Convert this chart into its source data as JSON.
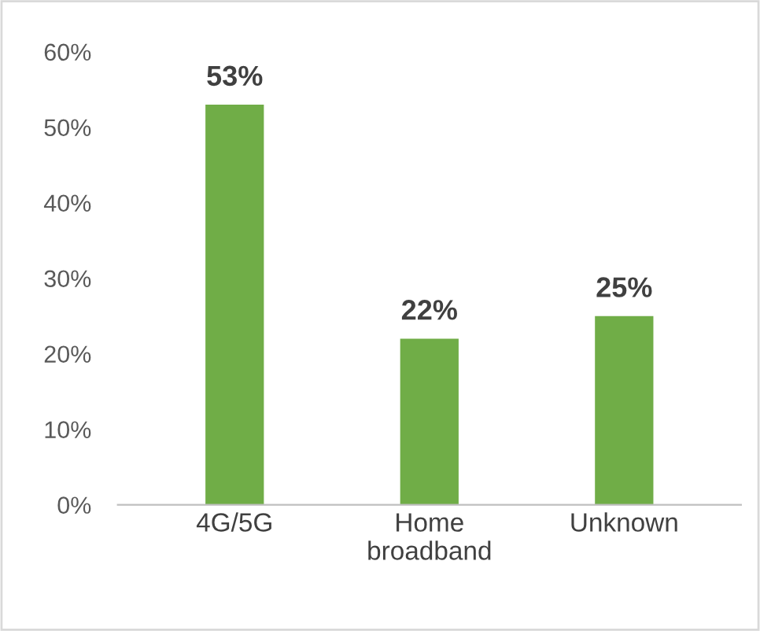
{
  "chart_data": {
    "type": "bar",
    "categories": [
      "4G/5G",
      "Home\nbroadband",
      "Unknown"
    ],
    "values": [
      53,
      22,
      25
    ],
    "color": "#70ad47",
    "value_labels": [
      "53%",
      "22%",
      "25%"
    ],
    "ylim": [
      0,
      60
    ],
    "yticks": [
      {
        "value": 0,
        "label": "0%"
      },
      {
        "value": 10,
        "label": "10%"
      },
      {
        "value": 20,
        "label": "20%"
      },
      {
        "value": 30,
        "label": "30%"
      },
      {
        "value": 40,
        "label": "40%"
      },
      {
        "value": 50,
        "label": "50%"
      },
      {
        "value": 60,
        "label": "60%"
      }
    ],
    "grid": false,
    "legend": false
  }
}
